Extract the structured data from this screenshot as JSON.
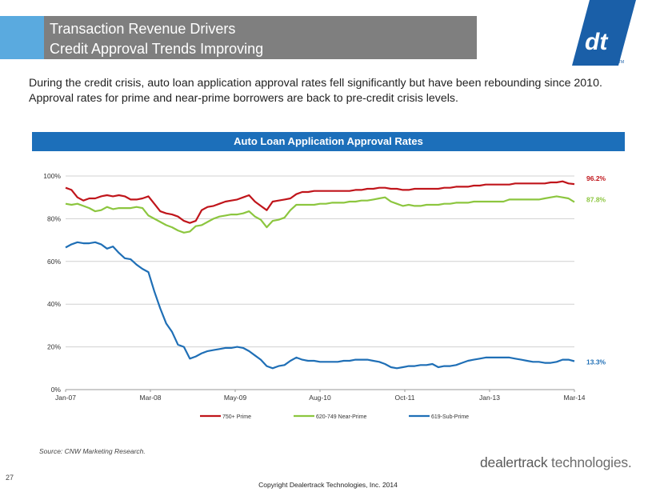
{
  "header": {
    "title_line1": "Transaction Revenue Drivers",
    "title_line2": "Credit Approval Trends Improving",
    "accent_color": "#5aaadf",
    "title_bg_color": "#7f7f7f"
  },
  "logo": {
    "mark": "dt",
    "tm": "TM",
    "color": "#1a5fa8"
  },
  "intro_text": "During the credit crisis, auto loan application approval rates fell significantly but have been rebounding since 2010. Approval rates for prime and near-prime borrowers are back to pre-credit crisis levels.",
  "chart_header": "Auto Loan Application Approval Rates",
  "chart_data": {
    "type": "line",
    "title": "Auto Loan Application Approval Rates",
    "xlabel": "",
    "ylabel": "",
    "x_ticks": [
      "Jan-07",
      "Mar-08",
      "May-09",
      "Aug-10",
      "Oct-11",
      "Jan-13",
      "Mar-14"
    ],
    "y_ticks": [
      "0%",
      "20%",
      "40%",
      "60%",
      "80%",
      "100%"
    ],
    "ylim": [
      0,
      100
    ],
    "x_range_months": [
      0,
      86
    ],
    "grid": true,
    "legend_position": "bottom",
    "series": [
      {
        "name": "750+ Prime",
        "color": "#c0151b",
        "end_label": "96.2%",
        "values": [
          94.5,
          93.5,
          90,
          88.5,
          89.5,
          89.5,
          90.5,
          91,
          90.5,
          91,
          90.5,
          89,
          89,
          89.5,
          90.5,
          87,
          83.5,
          82.5,
          82,
          81,
          79,
          78,
          79,
          84,
          85.5,
          86,
          87,
          88,
          88.5,
          89,
          90,
          91,
          88,
          86,
          84,
          88,
          88.5,
          89,
          89.5,
          91.5,
          92.5,
          92.5,
          93,
          93,
          93,
          93,
          93,
          93,
          93,
          93.5,
          93.5,
          94,
          94,
          94.5,
          94.5,
          94,
          94,
          93.5,
          93.5,
          94,
          94,
          94,
          94,
          94,
          94.5,
          94.5,
          95,
          95,
          95,
          95.5,
          95.5,
          96,
          96,
          96,
          96,
          96,
          96.5,
          96.5,
          96.5,
          96.5,
          96.5,
          96.5,
          97,
          97,
          97.5,
          96.5,
          96.2
        ]
      },
      {
        "name": "620-749 Near-Prime",
        "color": "#8cc63f",
        "end_label": "87.8%",
        "values": [
          87,
          86.5,
          87,
          86,
          85,
          83.5,
          84,
          85.5,
          84.5,
          85,
          85,
          85,
          85.5,
          85,
          81.5,
          80,
          78.5,
          77,
          76,
          74.5,
          73.5,
          74,
          76.5,
          77,
          78.5,
          80,
          81,
          81.5,
          82,
          82,
          82.5,
          83.5,
          81,
          79.5,
          76,
          79,
          79.5,
          80.5,
          84,
          86.5,
          86.5,
          86.5,
          86.5,
          87,
          87,
          87.5,
          87.5,
          87.5,
          88,
          88,
          88.5,
          88.5,
          89,
          89.5,
          90,
          88,
          87,
          86,
          86.5,
          86,
          86,
          86.5,
          86.5,
          86.5,
          87,
          87,
          87.5,
          87.5,
          87.5,
          88,
          88,
          88,
          88,
          88,
          88,
          89,
          89,
          89,
          89,
          89,
          89,
          89.5,
          90,
          90.5,
          90,
          89.5,
          87.8
        ]
      },
      {
        "name": "619-Sub-Prime",
        "color": "#1f6fb6",
        "end_label": "13.3%",
        "values": [
          66.5,
          68,
          69,
          68.5,
          68.5,
          69,
          68,
          66,
          67,
          64,
          61.5,
          61,
          58.5,
          56.5,
          55,
          46,
          38,
          31,
          27,
          21,
          20,
          14.5,
          15.5,
          17,
          18,
          18.5,
          19,
          19.5,
          19.5,
          20,
          19.5,
          18,
          16,
          14,
          11,
          10,
          11,
          11.5,
          13.5,
          15,
          14,
          13.5,
          13.5,
          13,
          13,
          13,
          13,
          13.5,
          13.5,
          14,
          14,
          14,
          13.5,
          13,
          12,
          10.5,
          10,
          10.5,
          11,
          11,
          11.5,
          11.5,
          12,
          10.5,
          11,
          11,
          11.5,
          12.5,
          13.5,
          14,
          14.5,
          15,
          15,
          15,
          15,
          15,
          14.5,
          14,
          13.5,
          13,
          13,
          12.5,
          12.5,
          13,
          14,
          14,
          13.3
        ]
      }
    ]
  },
  "source": "Source: CNW Marketing Research.",
  "page_number": "27",
  "copyright": "Copyright Dealertrack Technologies, Inc. 2014",
  "brand": {
    "part1": "dealertrack",
    "part2": " technologies."
  }
}
